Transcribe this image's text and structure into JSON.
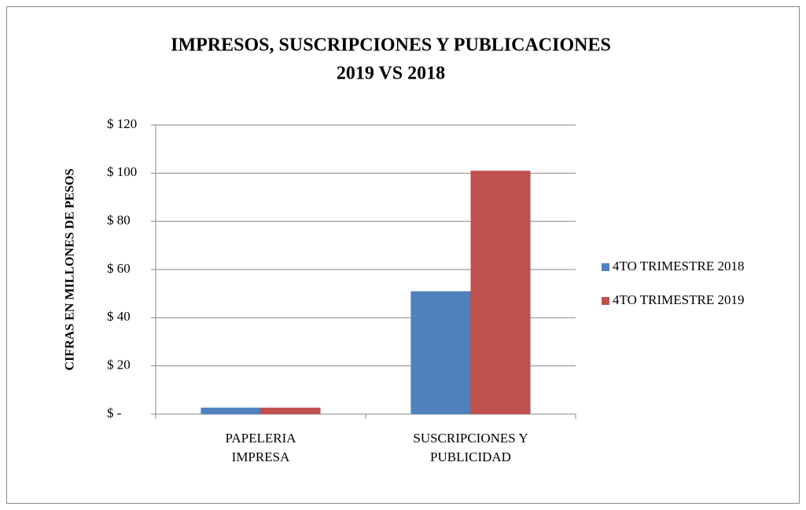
{
  "chart_data": {
    "type": "bar",
    "title": [
      "IMPRESOS, SUSCRIPCIONES  Y PUBLICACIONES",
      "2019 VS 2018"
    ],
    "y_label": "CIFRAS EN MILLONES DE PESOS",
    "categories": [
      "PAPELERIA IMPRESA",
      "SUSCRIPCIONES Y PUBLICIDAD"
    ],
    "series": [
      {
        "name": "4TO TRIMESTRE 2018",
        "color": "#4f81bd",
        "values": [
          2.7,
          51
        ]
      },
      {
        "name": "4TO TRIMESTRE 2019",
        "color": "#c0504d",
        "values": [
          2.7,
          101
        ]
      }
    ],
    "ylim": [
      0,
      120
    ],
    "yticks": [
      {
        "value": 0,
        "label": "$ -"
      },
      {
        "value": 20,
        "label": "$ 20"
      },
      {
        "value": 40,
        "label": "$ 40"
      },
      {
        "value": 60,
        "label": "$ 60"
      },
      {
        "value": 80,
        "label": "$ 80"
      },
      {
        "value": 100,
        "label": "$ 100"
      },
      {
        "value": 120,
        "label": "$ 120"
      }
    ],
    "grid": true,
    "legend": "right"
  }
}
